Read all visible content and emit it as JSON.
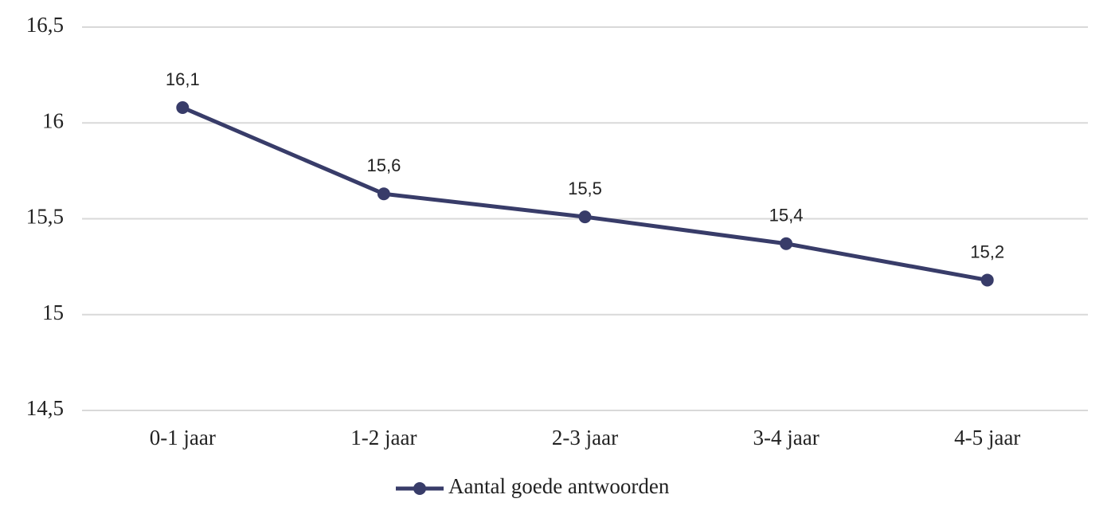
{
  "chart_data": {
    "type": "line",
    "categories": [
      "0-1 jaar",
      "1-2 jaar",
      "2-3 jaar",
      "3-4 jaar",
      "4-5 jaar"
    ],
    "series": [
      {
        "name": "Aantal goede antwoorden",
        "color": "#383c69",
        "values": [
          16.08,
          15.63,
          15.51,
          15.37,
          15.18
        ],
        "value_labels": [
          "16,1",
          "15,6",
          "15,5",
          "15,4",
          "15,2"
        ]
      }
    ],
    "ylim": [
      14.5,
      16.5
    ],
    "yticks": [
      {
        "value": 14.5,
        "label": "14,5"
      },
      15,
      {
        "value": 15.5,
        "label": "15,5"
      },
      16,
      {
        "value": 16.5,
        "label": "16,5"
      }
    ],
    "grid": true,
    "legend": "bottom"
  }
}
